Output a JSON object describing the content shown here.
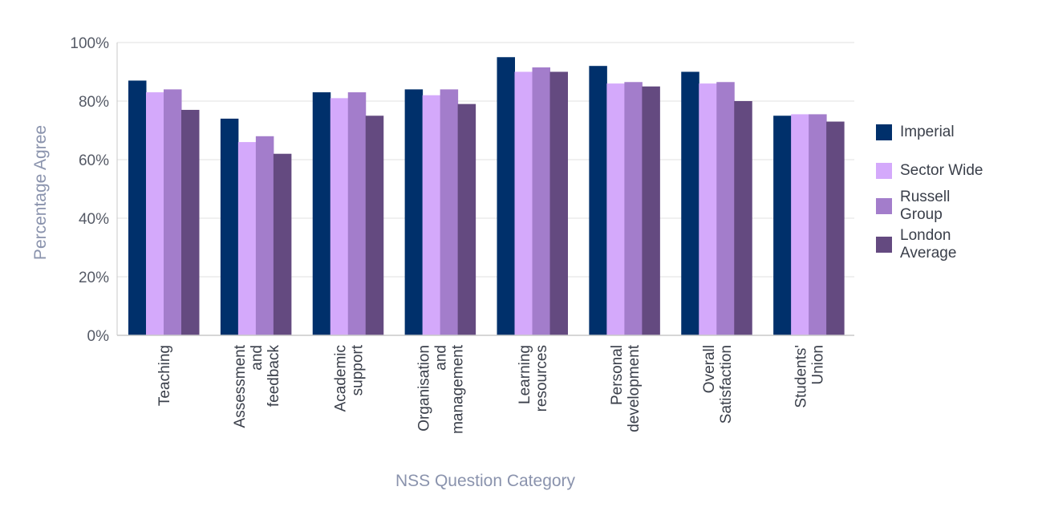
{
  "chart_data": {
    "type": "bar",
    "title": "",
    "xlabel": "NSS Question Category",
    "ylabel": "Percentage Agree",
    "ylim": [
      0,
      100
    ],
    "yticks": [
      "0%",
      "20%",
      "40%",
      "60%",
      "80%",
      "100%"
    ],
    "grid": true,
    "legend_position": "right",
    "categories": [
      "Teaching",
      "Assessment and feedback",
      "Academic support",
      "Organisation and management",
      "Learning resources",
      "Personal development",
      "Overall Satisfaction",
      "Students' Union"
    ],
    "category_lines": [
      [
        "Teaching"
      ],
      [
        "Assessment",
        "and",
        "feedback"
      ],
      [
        "Academic",
        "support"
      ],
      [
        "Organisation",
        "and",
        "management"
      ],
      [
        "Learning",
        "resources"
      ],
      [
        "Personal",
        "development"
      ],
      [
        "Overall",
        "Satisfaction"
      ],
      [
        "Students'",
        "Union"
      ]
    ],
    "series": [
      {
        "name": "Imperial",
        "color": "#00306b",
        "values": [
          87,
          74,
          83,
          84,
          95,
          92,
          90,
          75
        ]
      },
      {
        "name": "Sector Wide",
        "color": "#d4a9fb",
        "values": [
          83,
          66,
          81,
          82,
          90,
          86,
          86,
          75.5
        ]
      },
      {
        "name": "Russell Group",
        "color": "#a37dcb",
        "values": [
          84,
          68,
          83,
          84,
          91.5,
          86.5,
          86.5,
          75.5
        ]
      },
      {
        "name": "London Average",
        "color": "#644a80",
        "values": [
          77,
          62,
          75,
          79,
          90,
          85,
          80,
          73
        ]
      }
    ]
  },
  "legend": {
    "items": [
      {
        "label": "Imperial",
        "color": "#00306b"
      },
      {
        "label": "Sector Wide",
        "color": "#d4a9fb"
      },
      {
        "label": "Russell Group",
        "color": "#a37dcb"
      },
      {
        "label": "London Average",
        "color": "#644a80"
      }
    ]
  },
  "axes": {
    "x_title": "NSS Question Category",
    "y_title": "Percentage Agree"
  }
}
